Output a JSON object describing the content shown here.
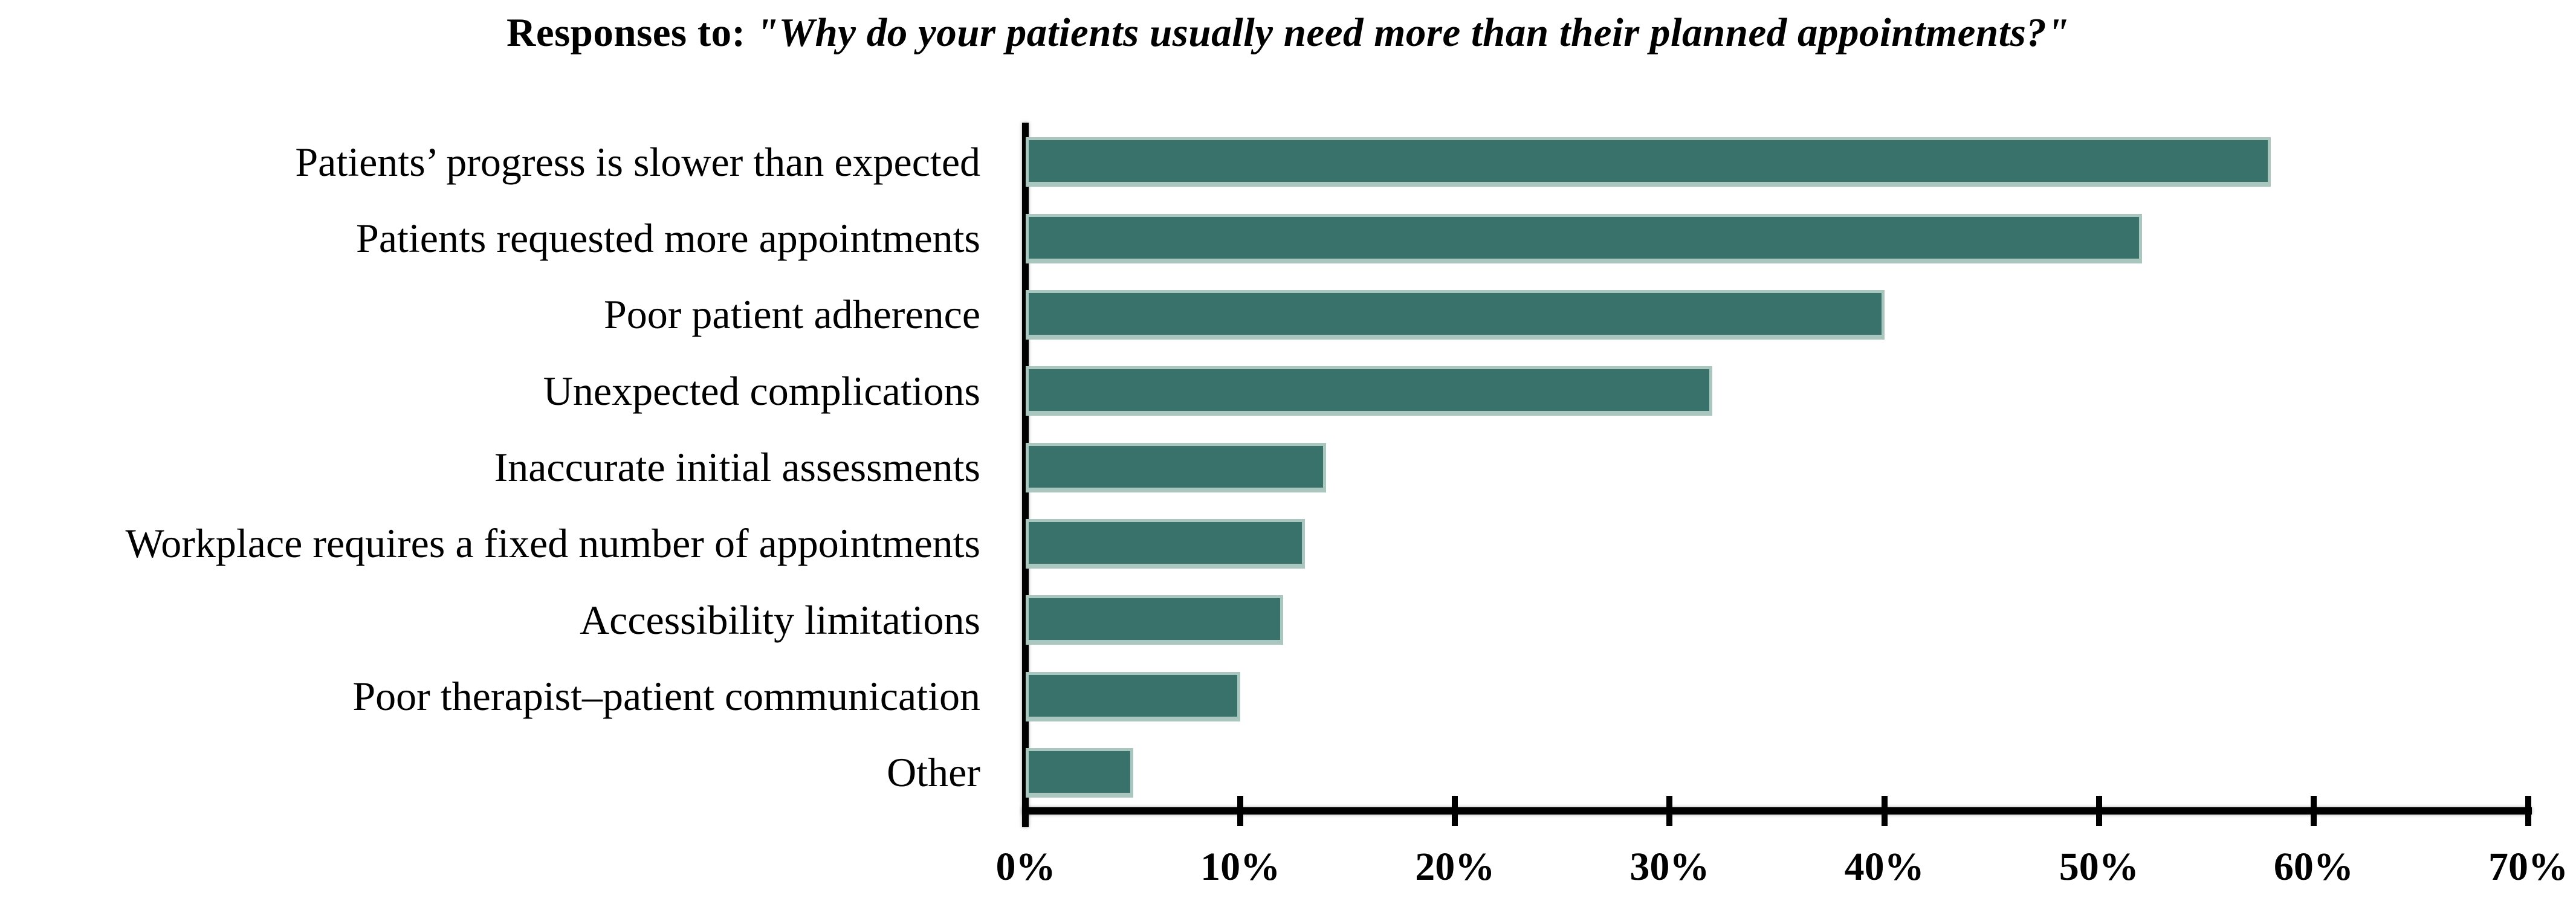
{
  "title": {
    "prefix": "Responses to: ",
    "quote": "\"Why do your patients usually need more than their planned appointments?\""
  },
  "chart_data": {
    "type": "bar",
    "orientation": "horizontal",
    "title": "Responses to: \"Why do your patients usually need more than their planned appointments?\"",
    "categories": [
      "Patients’ progress is slower than expected",
      "Patients requested more appointments",
      "Poor patient adherence",
      "Unexpected complications",
      "Inaccurate initial assessments",
      "Workplace requires a fixed number of appointments",
      "Accessibility limitations",
      "Poor therapist–patient communication",
      "Other"
    ],
    "values": [
      58,
      52,
      40,
      32,
      14,
      13,
      12,
      10,
      5
    ],
    "unit": "%",
    "xlabel": "",
    "ylabel": "",
    "xlim": [
      0,
      70
    ],
    "x_tick_values": [
      0,
      10,
      20,
      30,
      40,
      50,
      60,
      70
    ],
    "x_ticks": [
      "0%",
      "10%",
      "20%",
      "30%",
      "40%",
      "50%",
      "60%",
      "70%"
    ],
    "grid": false,
    "legend": "none",
    "bar_color": "#38726a",
    "bar_edge_color": "#a9c6bf",
    "axis_color": "#000000"
  }
}
